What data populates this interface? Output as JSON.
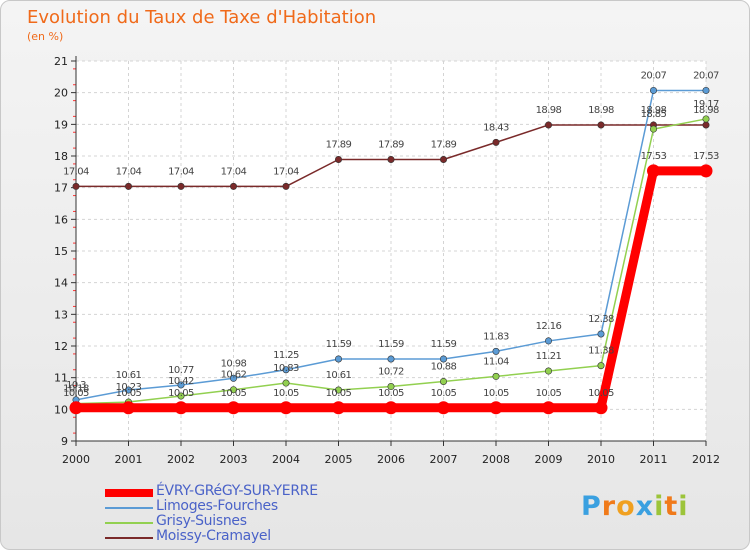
{
  "chart_data": {
    "type": "line",
    "title": "Evolution du Taux de Taxe d'Habitation",
    "subtitle": "(en %)",
    "xlabel": "",
    "ylabel": "",
    "ylim": [
      9,
      21
    ],
    "grid": true,
    "categories": [
      "2000",
      "2001",
      "2002",
      "2003",
      "2004",
      "2005",
      "2006",
      "2007",
      "2008",
      "2009",
      "2010",
      "2011",
      "2012"
    ],
    "yticks": [
      "9",
      "10",
      "11",
      "12",
      "13",
      "14",
      "15",
      "16",
      "17",
      "18",
      "19",
      "20",
      "21"
    ],
    "series": [
      {
        "name": "ÉVRY-GRéGY-SUR-YERRE",
        "color": "#ff0000",
        "values": [
          10.05,
          10.05,
          10.05,
          10.05,
          10.05,
          10.05,
          10.05,
          10.05,
          10.05,
          10.05,
          10.05,
          17.53,
          17.53
        ],
        "labels": [
          "10.05",
          "10.05",
          "10.05",
          "10.05",
          "10.05",
          "10.05",
          "10.05",
          "10.05",
          "10.05",
          "10.05",
          "10.05",
          "17.53",
          "17.53"
        ]
      },
      {
        "name": "Limoges-Fourches",
        "color": "#5b9bd5",
        "values": [
          10.3,
          10.61,
          10.77,
          10.98,
          11.25,
          11.59,
          11.59,
          11.59,
          11.83,
          12.16,
          12.38,
          20.07,
          20.07
        ],
        "labels": [
          "10.3",
          "10.61",
          "10.77",
          "10.98",
          "11.25",
          "11.59",
          "11.59",
          "11.59",
          "11.83",
          "12.16",
          "12.38",
          "20.07",
          "20.07"
        ]
      },
      {
        "name": "Grisy-Suisnes",
        "color": "#92d050",
        "values": [
          10.18,
          10.23,
          10.42,
          10.62,
          10.83,
          10.61,
          10.72,
          10.88,
          11.04,
          11.21,
          11.38,
          18.85,
          19.17
        ],
        "labels": [
          "10.18",
          "10.23",
          "10.42",
          "10.62",
          "10.83",
          "10.61",
          "10.72",
          "10.88",
          "11.04",
          "11.21",
          "11.38",
          "18.85",
          "19.17"
        ]
      },
      {
        "name": "Moissy-Cramayel",
        "color": "#7a2a2a",
        "values": [
          17.04,
          17.04,
          17.04,
          17.04,
          17.04,
          17.89,
          17.89,
          17.89,
          18.43,
          18.98,
          18.98,
          18.98,
          18.98
        ],
        "labels": [
          "17.04",
          "17.04",
          "17.04",
          "17.04",
          "17.04",
          "17.89",
          "17.89",
          "17.89",
          "18.43",
          "18.98",
          "18.98",
          "18.98",
          "18.98"
        ]
      }
    ]
  },
  "logo": {
    "letters": [
      "P",
      "r",
      "o",
      "x",
      "i",
      "t",
      "i"
    ],
    "colors": [
      "#3aa0e0",
      "#f07a1a",
      "#f0a020",
      "#3aa0e0",
      "#9cc43a",
      "#f07a1a",
      "#9cc43a"
    ]
  }
}
